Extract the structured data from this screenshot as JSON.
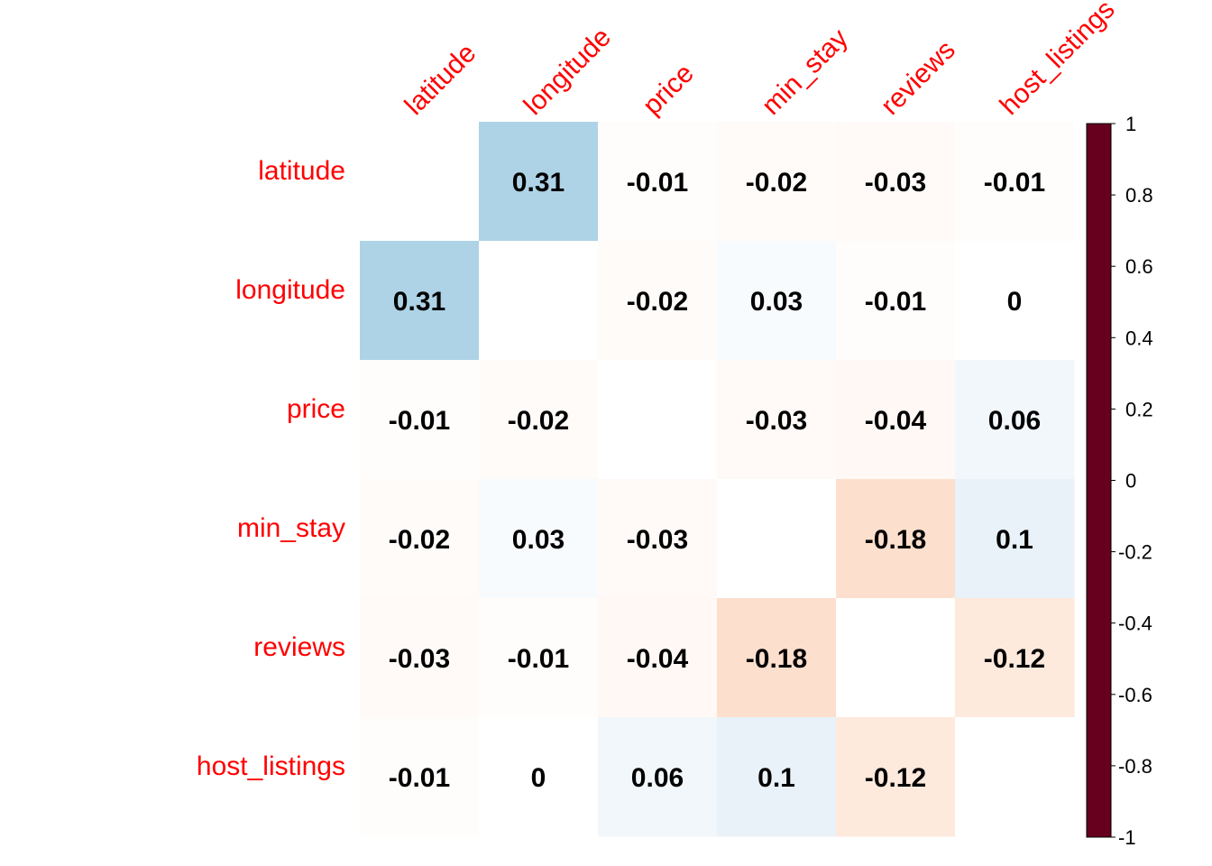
{
  "chart_data": {
    "type": "heatmap",
    "rows": [
      "latitude",
      "longitude",
      "price",
      "min_stay",
      "reviews",
      "host_listings"
    ],
    "columns": [
      "latitude",
      "longitude",
      "price",
      "min_stay",
      "reviews",
      "host_listings"
    ],
    "values": [
      [
        null,
        0.31,
        -0.01,
        -0.02,
        -0.03,
        -0.01
      ],
      [
        0.31,
        null,
        -0.02,
        0.03,
        -0.01,
        0
      ],
      [
        -0.01,
        -0.02,
        null,
        -0.03,
        -0.04,
        0.06
      ],
      [
        -0.02,
        0.03,
        -0.03,
        null,
        -0.18,
        0.1
      ],
      [
        -0.03,
        -0.01,
        -0.04,
        -0.18,
        null,
        -0.12
      ],
      [
        -0.01,
        0,
        0.06,
        0.1,
        -0.12,
        null
      ]
    ],
    "color_scale": {
      "range": [
        -1,
        1
      ],
      "ticks": [
        "1",
        "0.8",
        "0.6",
        "0.4",
        "0.2",
        "0",
        "-0.2",
        "-0.4",
        "-0.6",
        "-0.8",
        "-1"
      ],
      "tick_values": [
        1,
        0.8,
        0.6,
        0.4,
        0.2,
        0,
        -0.2,
        -0.4,
        -0.6,
        -0.8,
        -1
      ],
      "colors": [
        "#67001F",
        "#B2182B",
        "#D6604D",
        "#F4A582",
        "#FDDBC7",
        "#FFFFFF",
        "#D1E5F0",
        "#92C5DE",
        "#4393C3",
        "#2166AC",
        "#053061"
      ]
    },
    "label_color": "#FF0000",
    "diagonal": "blank"
  }
}
